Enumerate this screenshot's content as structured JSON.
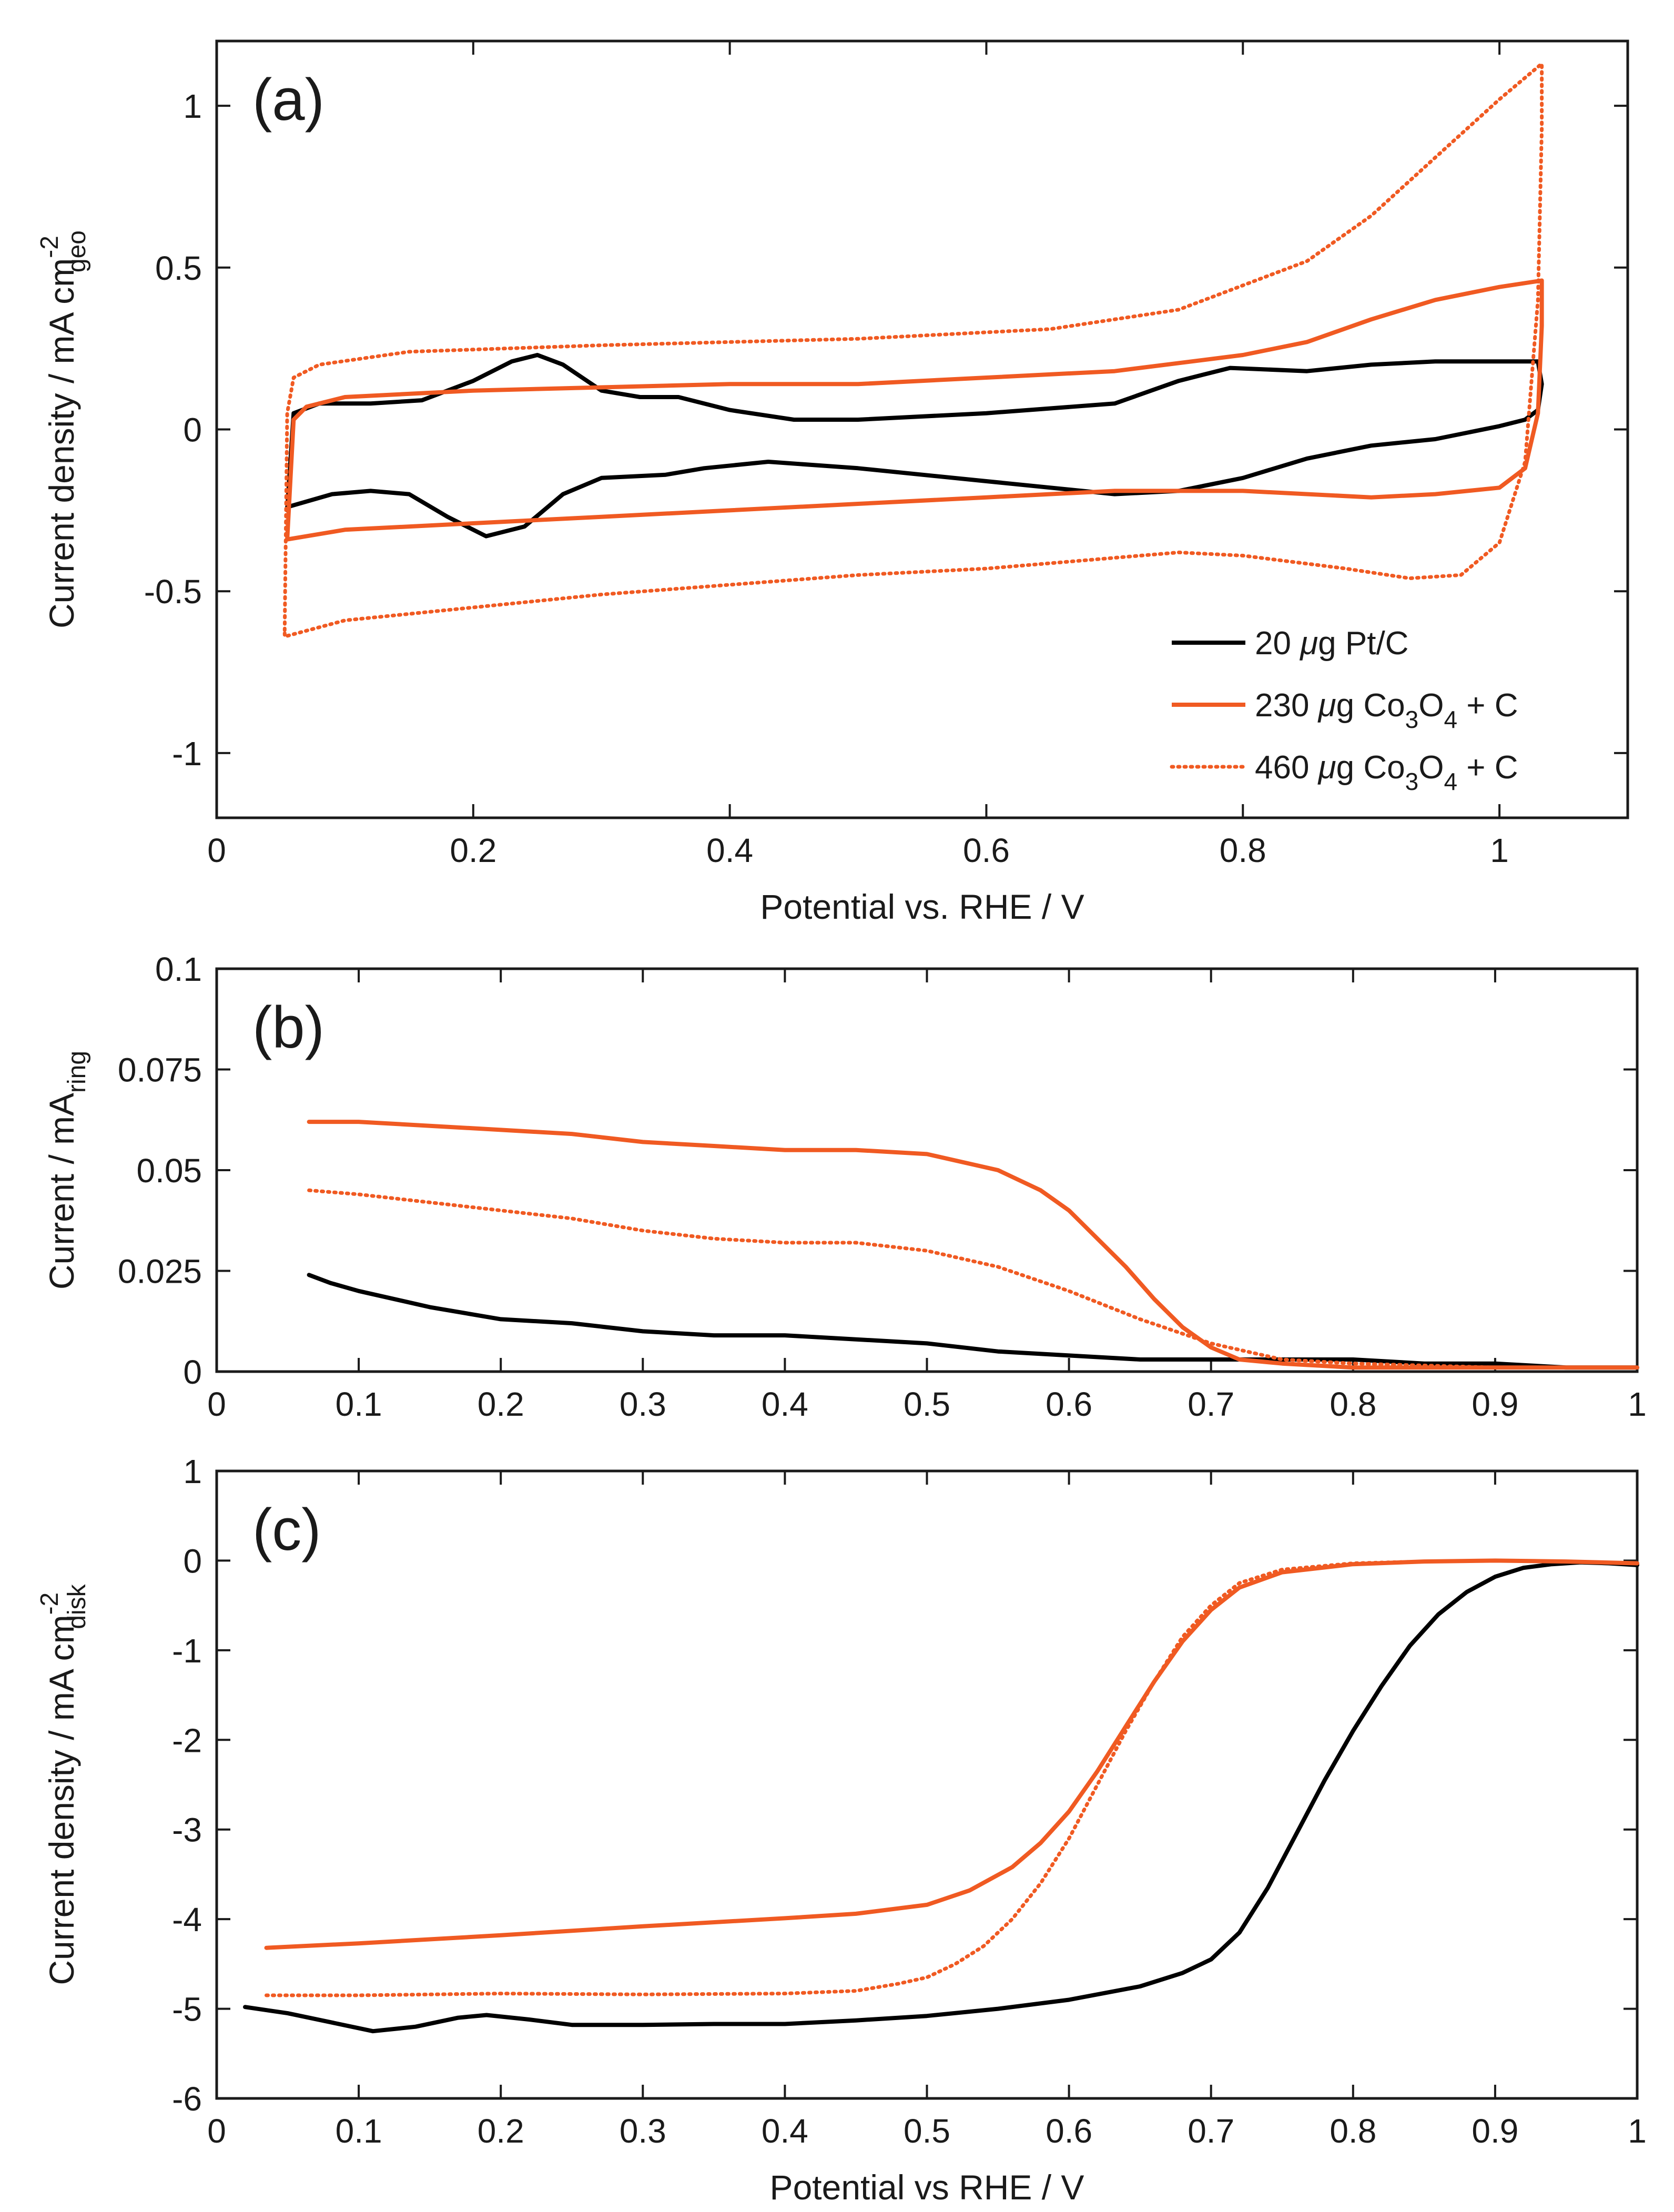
{
  "chart_data": [
    {
      "id": "a",
      "type": "line",
      "panel_label": "(a)",
      "xlabel": "Potential vs. RHE / V",
      "ylabel": {
        "main": "Current density / mA cm",
        "sup": "-2",
        "sub": "geo"
      },
      "xlim": [
        0,
        1.1
      ],
      "ylim": [
        -1.2,
        1.2
      ],
      "xticks": [
        0,
        0.2,
        0.4,
        0.6,
        0.8,
        1
      ],
      "xtick_labels": [
        "0",
        "0.2",
        "0.4",
        "0.6",
        "0.8",
        "1"
      ],
      "yticks": [
        -1,
        -0.5,
        0,
        0.5,
        1
      ],
      "ytick_labels": [
        "-1",
        "-0.5",
        "0",
        "0.5",
        "1"
      ],
      "grid": false,
      "legend_position": "bottom-right",
      "series": [
        {
          "name": "20 μg Pt/C",
          "legend": {
            "main": "20 ",
            "mu": "μ",
            "rest": "g  Pt/C"
          },
          "color": "#000000",
          "style": "solid",
          "closed": true,
          "x": [
            0.055,
            0.06,
            0.08,
            0.12,
            0.16,
            0.2,
            0.23,
            0.25,
            0.27,
            0.3,
            0.33,
            0.36,
            0.4,
            0.45,
            0.5,
            0.6,
            0.7,
            0.75,
            0.79,
            0.85,
            0.9,
            0.95,
            1.0,
            1.03,
            1.033,
            1.03,
            1.02,
            1.0,
            0.95,
            0.9,
            0.85,
            0.8,
            0.75,
            0.7,
            0.6,
            0.5,
            0.43,
            0.38,
            0.35,
            0.3,
            0.27,
            0.24,
            0.21,
            0.18,
            0.15,
            0.12,
            0.09,
            0.055
          ],
          "y": [
            -0.25,
            0.05,
            0.08,
            0.08,
            0.09,
            0.15,
            0.21,
            0.23,
            0.2,
            0.12,
            0.1,
            0.1,
            0.06,
            0.03,
            0.03,
            0.05,
            0.08,
            0.15,
            0.19,
            0.18,
            0.2,
            0.21,
            0.21,
            0.21,
            0.14,
            0.06,
            0.03,
            0.01,
            -0.03,
            -0.05,
            -0.09,
            -0.15,
            -0.19,
            -0.2,
            -0.16,
            -0.12,
            -0.1,
            -0.12,
            -0.14,
            -0.15,
            -0.2,
            -0.3,
            -0.33,
            -0.27,
            -0.2,
            -0.19,
            -0.2,
            -0.24
          ]
        },
        {
          "name": "230 μg Co3O4 + C",
          "legend": {
            "main": "230 ",
            "mu": "μ",
            "rest": "g Co",
            "sub1": "3",
            "mid": "O",
            "sub2": "4",
            "tail": " + C"
          },
          "color": "#f05a22",
          "style": "solid",
          "closed": true,
          "x": [
            0.055,
            0.06,
            0.07,
            0.1,
            0.2,
            0.3,
            0.4,
            0.5,
            0.6,
            0.7,
            0.8,
            0.85,
            0.9,
            0.95,
            1.0,
            1.033,
            1.033,
            1.03,
            1.02,
            1.0,
            0.95,
            0.9,
            0.8,
            0.7,
            0.6,
            0.5,
            0.4,
            0.3,
            0.2,
            0.1,
            0.055
          ],
          "y": [
            -0.34,
            0.03,
            0.07,
            0.1,
            0.12,
            0.13,
            0.14,
            0.14,
            0.16,
            0.18,
            0.23,
            0.27,
            0.34,
            0.4,
            0.44,
            0.46,
            0.32,
            0.05,
            -0.12,
            -0.18,
            -0.2,
            -0.21,
            -0.19,
            -0.19,
            -0.21,
            -0.23,
            -0.25,
            -0.27,
            -0.29,
            -0.31,
            -0.34
          ]
        },
        {
          "name": "460 μg Co3O4 + C",
          "legend": {
            "main": "460 ",
            "mu": "μ",
            "rest": "g Co",
            "sub1": "3",
            "mid": "O",
            "sub2": "4",
            "tail": " + C"
          },
          "color": "#f05a22",
          "style": "dotted",
          "closed": true,
          "x": [
            0.053,
            0.055,
            0.06,
            0.08,
            0.15,
            0.3,
            0.5,
            0.65,
            0.75,
            0.85,
            0.9,
            0.95,
            1.0,
            1.033,
            1.033,
            1.03,
            1.02,
            1.0,
            0.97,
            0.93,
            0.88,
            0.8,
            0.75,
            0.6,
            0.5,
            0.4,
            0.3,
            0.2,
            0.1,
            0.053
          ],
          "y": [
            -0.62,
            0.05,
            0.16,
            0.2,
            0.24,
            0.26,
            0.28,
            0.31,
            0.37,
            0.52,
            0.66,
            0.84,
            1.02,
            1.13,
            0.93,
            0.4,
            -0.1,
            -0.35,
            -0.45,
            -0.46,
            -0.43,
            -0.39,
            -0.38,
            -0.43,
            -0.45,
            -0.48,
            -0.51,
            -0.55,
            -0.59,
            -0.64
          ]
        }
      ]
    },
    {
      "id": "b",
      "type": "line",
      "panel_label": "(b)",
      "xlabel": "",
      "ylabel": {
        "main": "Current / mA",
        "sup": "",
        "sub": "ring"
      },
      "xlim": [
        0,
        1
      ],
      "ylim": [
        0,
        0.1
      ],
      "xticks": [
        0,
        0.1,
        0.2,
        0.3,
        0.4,
        0.5,
        0.6,
        0.7,
        0.8,
        0.9,
        1
      ],
      "xtick_labels": [
        "0",
        "0.1",
        "0.2",
        "0.3",
        "0.4",
        "0.5",
        "0.6",
        "0.7",
        "0.8",
        "0.9",
        "1"
      ],
      "yticks": [
        0,
        0.025,
        0.05,
        0.075,
        0.1
      ],
      "ytick_labels": [
        "0",
        "0.025",
        "0.05",
        "0.075",
        "0.1"
      ],
      "grid": false,
      "series": [
        {
          "color": "#000000",
          "style": "solid",
          "x": [
            0.065,
            0.08,
            0.1,
            0.15,
            0.2,
            0.25,
            0.3,
            0.35,
            0.4,
            0.45,
            0.5,
            0.55,
            0.6,
            0.65,
            0.7,
            0.75,
            0.8,
            0.85,
            0.9,
            0.95,
            1.0
          ],
          "y": [
            0.024,
            0.022,
            0.02,
            0.016,
            0.013,
            0.012,
            0.01,
            0.009,
            0.009,
            0.008,
            0.007,
            0.005,
            0.004,
            0.003,
            0.003,
            0.003,
            0.003,
            0.002,
            0.002,
            0.001,
            0.001
          ]
        },
        {
          "color": "#f05a22",
          "style": "solid",
          "x": [
            0.065,
            0.1,
            0.15,
            0.2,
            0.25,
            0.3,
            0.35,
            0.4,
            0.45,
            0.5,
            0.55,
            0.58,
            0.6,
            0.62,
            0.64,
            0.66,
            0.68,
            0.7,
            0.72,
            0.75,
            0.8,
            0.9,
            1.0
          ],
          "y": [
            0.062,
            0.062,
            0.061,
            0.06,
            0.059,
            0.057,
            0.056,
            0.055,
            0.055,
            0.054,
            0.05,
            0.045,
            0.04,
            0.033,
            0.026,
            0.018,
            0.011,
            0.006,
            0.003,
            0.002,
            0.001,
            0.001,
            0.001
          ]
        },
        {
          "color": "#f05a22",
          "style": "dotted",
          "x": [
            0.065,
            0.1,
            0.15,
            0.2,
            0.25,
            0.3,
            0.35,
            0.4,
            0.45,
            0.5,
            0.55,
            0.6,
            0.65,
            0.7,
            0.75,
            0.8,
            0.9,
            1.0
          ],
          "y": [
            0.045,
            0.044,
            0.042,
            0.04,
            0.038,
            0.035,
            0.033,
            0.032,
            0.032,
            0.03,
            0.026,
            0.02,
            0.013,
            0.007,
            0.003,
            0.002,
            0.001,
            0.001
          ]
        }
      ]
    },
    {
      "id": "c",
      "type": "line",
      "panel_label": "(c)",
      "xlabel": "Potential vs RHE / V",
      "ylabel": {
        "main": "Current density / mA cm",
        "sup": "-2",
        "sub": "disk"
      },
      "xlim": [
        0,
        1
      ],
      "ylim": [
        -6,
        1
      ],
      "xticks": [
        0,
        0.1,
        0.2,
        0.3,
        0.4,
        0.5,
        0.6,
        0.7,
        0.8,
        0.9,
        1
      ],
      "xtick_labels": [
        "0",
        "0.1",
        "0.2",
        "0.3",
        "0.4",
        "0.5",
        "0.6",
        "0.7",
        "0.8",
        "0.9",
        "1"
      ],
      "yticks": [
        -6,
        -5,
        -4,
        -3,
        -2,
        -1,
        0,
        1
      ],
      "ytick_labels": [
        "-6",
        "-5",
        "-4",
        "-3",
        "-2",
        "-1",
        "0",
        "1"
      ],
      "grid": false,
      "series": [
        {
          "color": "#000000",
          "style": "solid",
          "x": [
            0.02,
            0.05,
            0.08,
            0.11,
            0.14,
            0.17,
            0.19,
            0.22,
            0.25,
            0.3,
            0.35,
            0.4,
            0.45,
            0.5,
            0.55,
            0.6,
            0.65,
            0.68,
            0.7,
            0.72,
            0.74,
            0.76,
            0.78,
            0.8,
            0.82,
            0.84,
            0.86,
            0.88,
            0.9,
            0.92,
            0.94,
            0.96,
            0.98,
            1.0
          ],
          "y": [
            -4.98,
            -5.05,
            -5.15,
            -5.25,
            -5.2,
            -5.1,
            -5.07,
            -5.12,
            -5.18,
            -5.18,
            -5.17,
            -5.17,
            -5.13,
            -5.08,
            -5.0,
            -4.9,
            -4.75,
            -4.6,
            -4.45,
            -4.15,
            -3.65,
            -3.05,
            -2.45,
            -1.9,
            -1.4,
            -0.95,
            -0.6,
            -0.35,
            -0.18,
            -0.08,
            -0.04,
            -0.02,
            -0.03,
            -0.05
          ]
        },
        {
          "color": "#f05a22",
          "style": "solid",
          "x": [
            0.035,
            0.1,
            0.2,
            0.3,
            0.4,
            0.45,
            0.5,
            0.53,
            0.56,
            0.58,
            0.6,
            0.62,
            0.64,
            0.66,
            0.68,
            0.7,
            0.72,
            0.75,
            0.8,
            0.85,
            0.9,
            0.95,
            1.0
          ],
          "y": [
            -4.32,
            -4.27,
            -4.18,
            -4.08,
            -3.99,
            -3.94,
            -3.84,
            -3.68,
            -3.42,
            -3.15,
            -2.8,
            -2.35,
            -1.85,
            -1.35,
            -0.9,
            -0.55,
            -0.3,
            -0.13,
            -0.04,
            -0.01,
            0.0,
            -0.01,
            -0.03
          ]
        },
        {
          "color": "#f05a22",
          "style": "dotted",
          "x": [
            0.035,
            0.1,
            0.2,
            0.3,
            0.4,
            0.45,
            0.48,
            0.5,
            0.52,
            0.54,
            0.56,
            0.58,
            0.6,
            0.62,
            0.64,
            0.66,
            0.68,
            0.7,
            0.72,
            0.75,
            0.8,
            0.85,
            0.9,
            0.95,
            1.0
          ],
          "y": [
            -4.85,
            -4.85,
            -4.83,
            -4.84,
            -4.83,
            -4.8,
            -4.72,
            -4.65,
            -4.5,
            -4.3,
            -4.0,
            -3.6,
            -3.1,
            -2.5,
            -1.9,
            -1.35,
            -0.85,
            -0.5,
            -0.25,
            -0.1,
            -0.03,
            -0.01,
            0.0,
            -0.01,
            -0.03
          ]
        }
      ]
    }
  ]
}
